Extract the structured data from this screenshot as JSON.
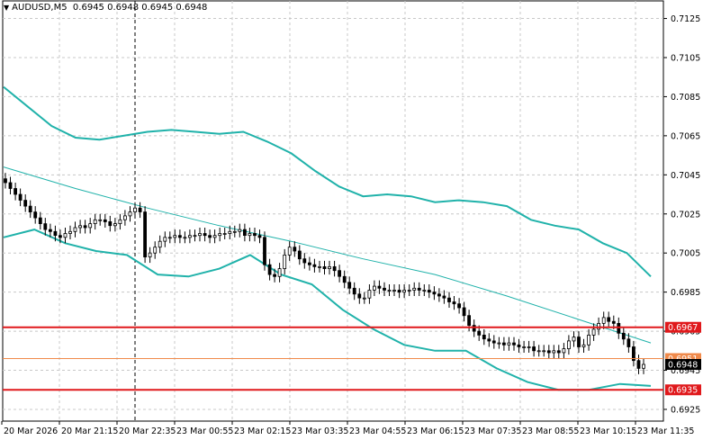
{
  "header": {
    "symbol_timeframe": "AUDUSD,M5",
    "ohlc": "0.6945 0.6948 0.6945 0.6948"
  },
  "price_axis": {
    "ticks": [
      "0.7125",
      "0.7105",
      "0.7085",
      "0.7065",
      "0.7045",
      "0.7025",
      "0.7005",
      "0.6985",
      "0.6965",
      "0.6945",
      "0.6925"
    ]
  },
  "time_axis": {
    "labels": [
      "20 Mar 2026",
      "20 Mar 21:15",
      "20 Mar 22:35",
      "23 Mar 00:55",
      "23 Mar 02:15",
      "23 Mar 03:35",
      "23 Mar 04:55",
      "23 Mar 06:15",
      "23 Mar 07:35",
      "23 Mar 08:55",
      "23 Mar 10:15",
      "23 Mar 11:35"
    ]
  },
  "horizontal_lines": [
    {
      "price": 0.6967,
      "label": "0.6967",
      "color": "#e0191c"
    },
    {
      "price": 0.6935,
      "label": "0.6935",
      "color": "#e0191c"
    },
    {
      "price": 0.6951,
      "label": "0.6951",
      "color": "#f08a4b"
    }
  ],
  "current_price": {
    "price": 0.6948,
    "label": "0.6948"
  },
  "colors": {
    "bollinger": "#20b2aa",
    "candle": "#000000",
    "grid": "#c8c8c8",
    "background": "#ffffff"
  },
  "chart_data": {
    "type": "candlestick",
    "symbol": "AUDUSD",
    "timeframe": "M5",
    "ylim": [
      0.6919,
      0.7134
    ],
    "close_series": [
      0.7041,
      0.7038,
      0.7035,
      0.7032,
      0.7029,
      0.7026,
      0.7023,
      0.702,
      0.7017,
      0.7016,
      0.7014,
      0.7013,
      0.7015,
      0.7016,
      0.7018,
      0.7019,
      0.7018,
      0.702,
      0.7022,
      0.7022,
      0.7021,
      0.7019,
      0.702,
      0.7022,
      0.7024,
      0.7026,
      0.7028,
      0.7026,
      0.7003,
      0.7005,
      0.7008,
      0.7011,
      0.7013,
      0.7013,
      0.7014,
      0.7013,
      0.7013,
      0.7014,
      0.7014,
      0.7015,
      0.7014,
      0.7013,
      0.7014,
      0.7015,
      0.7015,
      0.7016,
      0.7016,
      0.7017,
      0.7014,
      0.7015,
      0.7014,
      0.7013,
      0.6999,
      0.6994,
      0.6993,
      0.6997,
      0.7004,
      0.7008,
      0.7006,
      0.7002,
      0.7,
      0.6999,
      0.6998,
      0.6998,
      0.6997,
      0.6998,
      0.6996,
      0.6993,
      0.699,
      0.6987,
      0.6984,
      0.6982,
      0.6982,
      0.6986,
      0.6988,
      0.6987,
      0.6986,
      0.6986,
      0.6986,
      0.6985,
      0.6986,
      0.6986,
      0.6987,
      0.6986,
      0.6986,
      0.6985,
      0.6984,
      0.6983,
      0.6982,
      0.698,
      0.6979,
      0.6977,
      0.6973,
      0.6968,
      0.6965,
      0.6963,
      0.6961,
      0.696,
      0.6959,
      0.6959,
      0.6958,
      0.6959,
      0.6958,
      0.6957,
      0.6957,
      0.6957,
      0.6955,
      0.6955,
      0.6955,
      0.6954,
      0.6955,
      0.6954,
      0.6956,
      0.696,
      0.6962,
      0.6957,
      0.6958,
      0.6963,
      0.6966,
      0.6969,
      0.6972,
      0.697,
      0.6969,
      0.6964,
      0.6961,
      0.6957,
      0.695,
      0.6946,
      0.6948
    ],
    "bollinger_upper": [
      0.709,
      0.708,
      0.707,
      0.7064,
      0.7063,
      0.7065,
      0.7067,
      0.7068,
      0.7067,
      0.7066,
      0.7067,
      0.7062,
      0.7056,
      0.7047,
      0.7039,
      0.7034,
      0.7035,
      0.7034,
      0.7031,
      0.7032,
      0.7031,
      0.7029,
      0.7022,
      0.7019,
      0.7017,
      0.701,
      0.7005,
      0.6993
    ],
    "bollinger_middle": [
      0.7049,
      0.7038,
      0.7028,
      0.7019,
      0.7011,
      0.7002,
      0.6994,
      0.6983,
      0.6971,
      0.6959
    ],
    "bollinger_lower": [
      0.7013,
      0.7017,
      0.701,
      0.7006,
      0.7004,
      0.6994,
      0.6993,
      0.6997,
      0.7004,
      0.6994,
      0.6989,
      0.6976,
      0.6966,
      0.6958,
      0.6955,
      0.6955,
      0.6946,
      0.6939,
      0.6935,
      0.6935,
      0.6938,
      0.6937
    ]
  }
}
